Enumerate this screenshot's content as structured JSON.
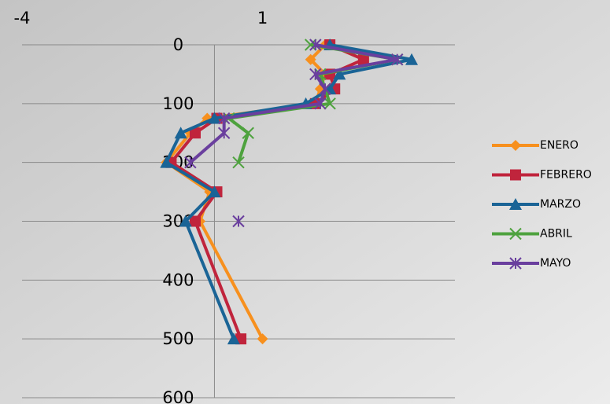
{
  "chart_data": {
    "type": "line",
    "y": [
      0,
      25,
      50,
      75,
      100,
      125,
      150,
      200,
      250,
      300,
      500
    ],
    "series": [
      {
        "name": "ENERO",
        "color": "#f7901e",
        "marker": "diamond",
        "values": [
          2.3,
          2.0,
          2.3,
          2.2,
          2.1,
          -0.15,
          -0.5,
          -1.0,
          -0.1,
          -0.3,
          1.0
        ]
      },
      {
        "name": "FEBRERO",
        "color": "#c0243c",
        "marker": "square",
        "values": [
          2.4,
          3.1,
          2.4,
          2.5,
          2.1,
          0.05,
          -0.4,
          -0.9,
          0.05,
          -0.4,
          0.55
        ]
      },
      {
        "name": "MARZO",
        "color": "#1a6496",
        "marker": "triangle",
        "values": [
          2.4,
          4.1,
          2.6,
          2.4,
          1.9,
          0.0,
          -0.7,
          -1.0,
          0.0,
          -0.6,
          0.4
        ]
      },
      {
        "name": "ABRIL",
        "color": "#4ea23e",
        "marker": "x",
        "values": [
          2.0,
          3.8,
          2.2,
          2.3,
          2.4,
          0.3,
          0.7,
          0.5,
          null,
          null,
          null
        ]
      },
      {
        "name": "MAYO",
        "color": "#6a3f9e",
        "marker": "star",
        "values": [
          2.1,
          3.8,
          2.1,
          2.3,
          2.2,
          0.2,
          0.2,
          -0.5,
          null,
          0.5,
          null
        ]
      }
    ],
    "xlim": [
      -4,
      5
    ],
    "xticks": [
      -4,
      1
    ],
    "ylim": [
      0,
      600
    ],
    "yticks": [
      0,
      100,
      200,
      300,
      400,
      500,
      600
    ],
    "y_inverted": true,
    "x_axis_position": "top",
    "grid": true,
    "legend": "right"
  }
}
